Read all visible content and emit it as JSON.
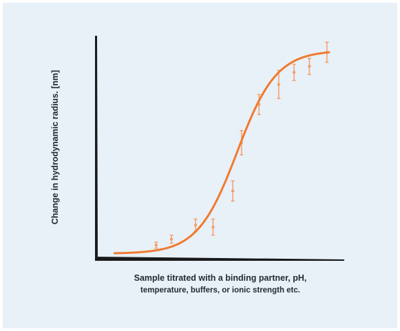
{
  "colors": {
    "background": "#e8f0f8",
    "axis": "#1a1a1a",
    "curve": "#f07a2e",
    "points": "#f2a06a"
  },
  "chart_data": {
    "type": "scatter",
    "xlabel_line1": "Sample titrated with a binding partner, pH,",
    "xlabel_line2": "temperature, buffers, or ionic strength etc.",
    "ylabel": "Change in hydrodynamic radius. [nm]",
    "xlim": [
      0,
      1
    ],
    "ylim": [
      0,
      1
    ],
    "grid": false,
    "fit": "sigmoidal",
    "points": [
      {
        "x": 0.21,
        "y": 0.04,
        "err": 0.015
      },
      {
        "x": 0.28,
        "y": 0.07,
        "err": 0.02
      },
      {
        "x": 0.39,
        "y": 0.14,
        "err": 0.03
      },
      {
        "x": 0.47,
        "y": 0.13,
        "err": 0.04
      },
      {
        "x": 0.56,
        "y": 0.31,
        "err": 0.05
      },
      {
        "x": 0.6,
        "y": 0.55,
        "err": 0.06
      },
      {
        "x": 0.68,
        "y": 0.74,
        "err": 0.05
      },
      {
        "x": 0.77,
        "y": 0.84,
        "err": 0.07
      },
      {
        "x": 0.84,
        "y": 0.9,
        "err": 0.04
      },
      {
        "x": 0.91,
        "y": 0.93,
        "err": 0.04
      },
      {
        "x": 0.99,
        "y": 1.0,
        "err": 0.05
      }
    ]
  }
}
